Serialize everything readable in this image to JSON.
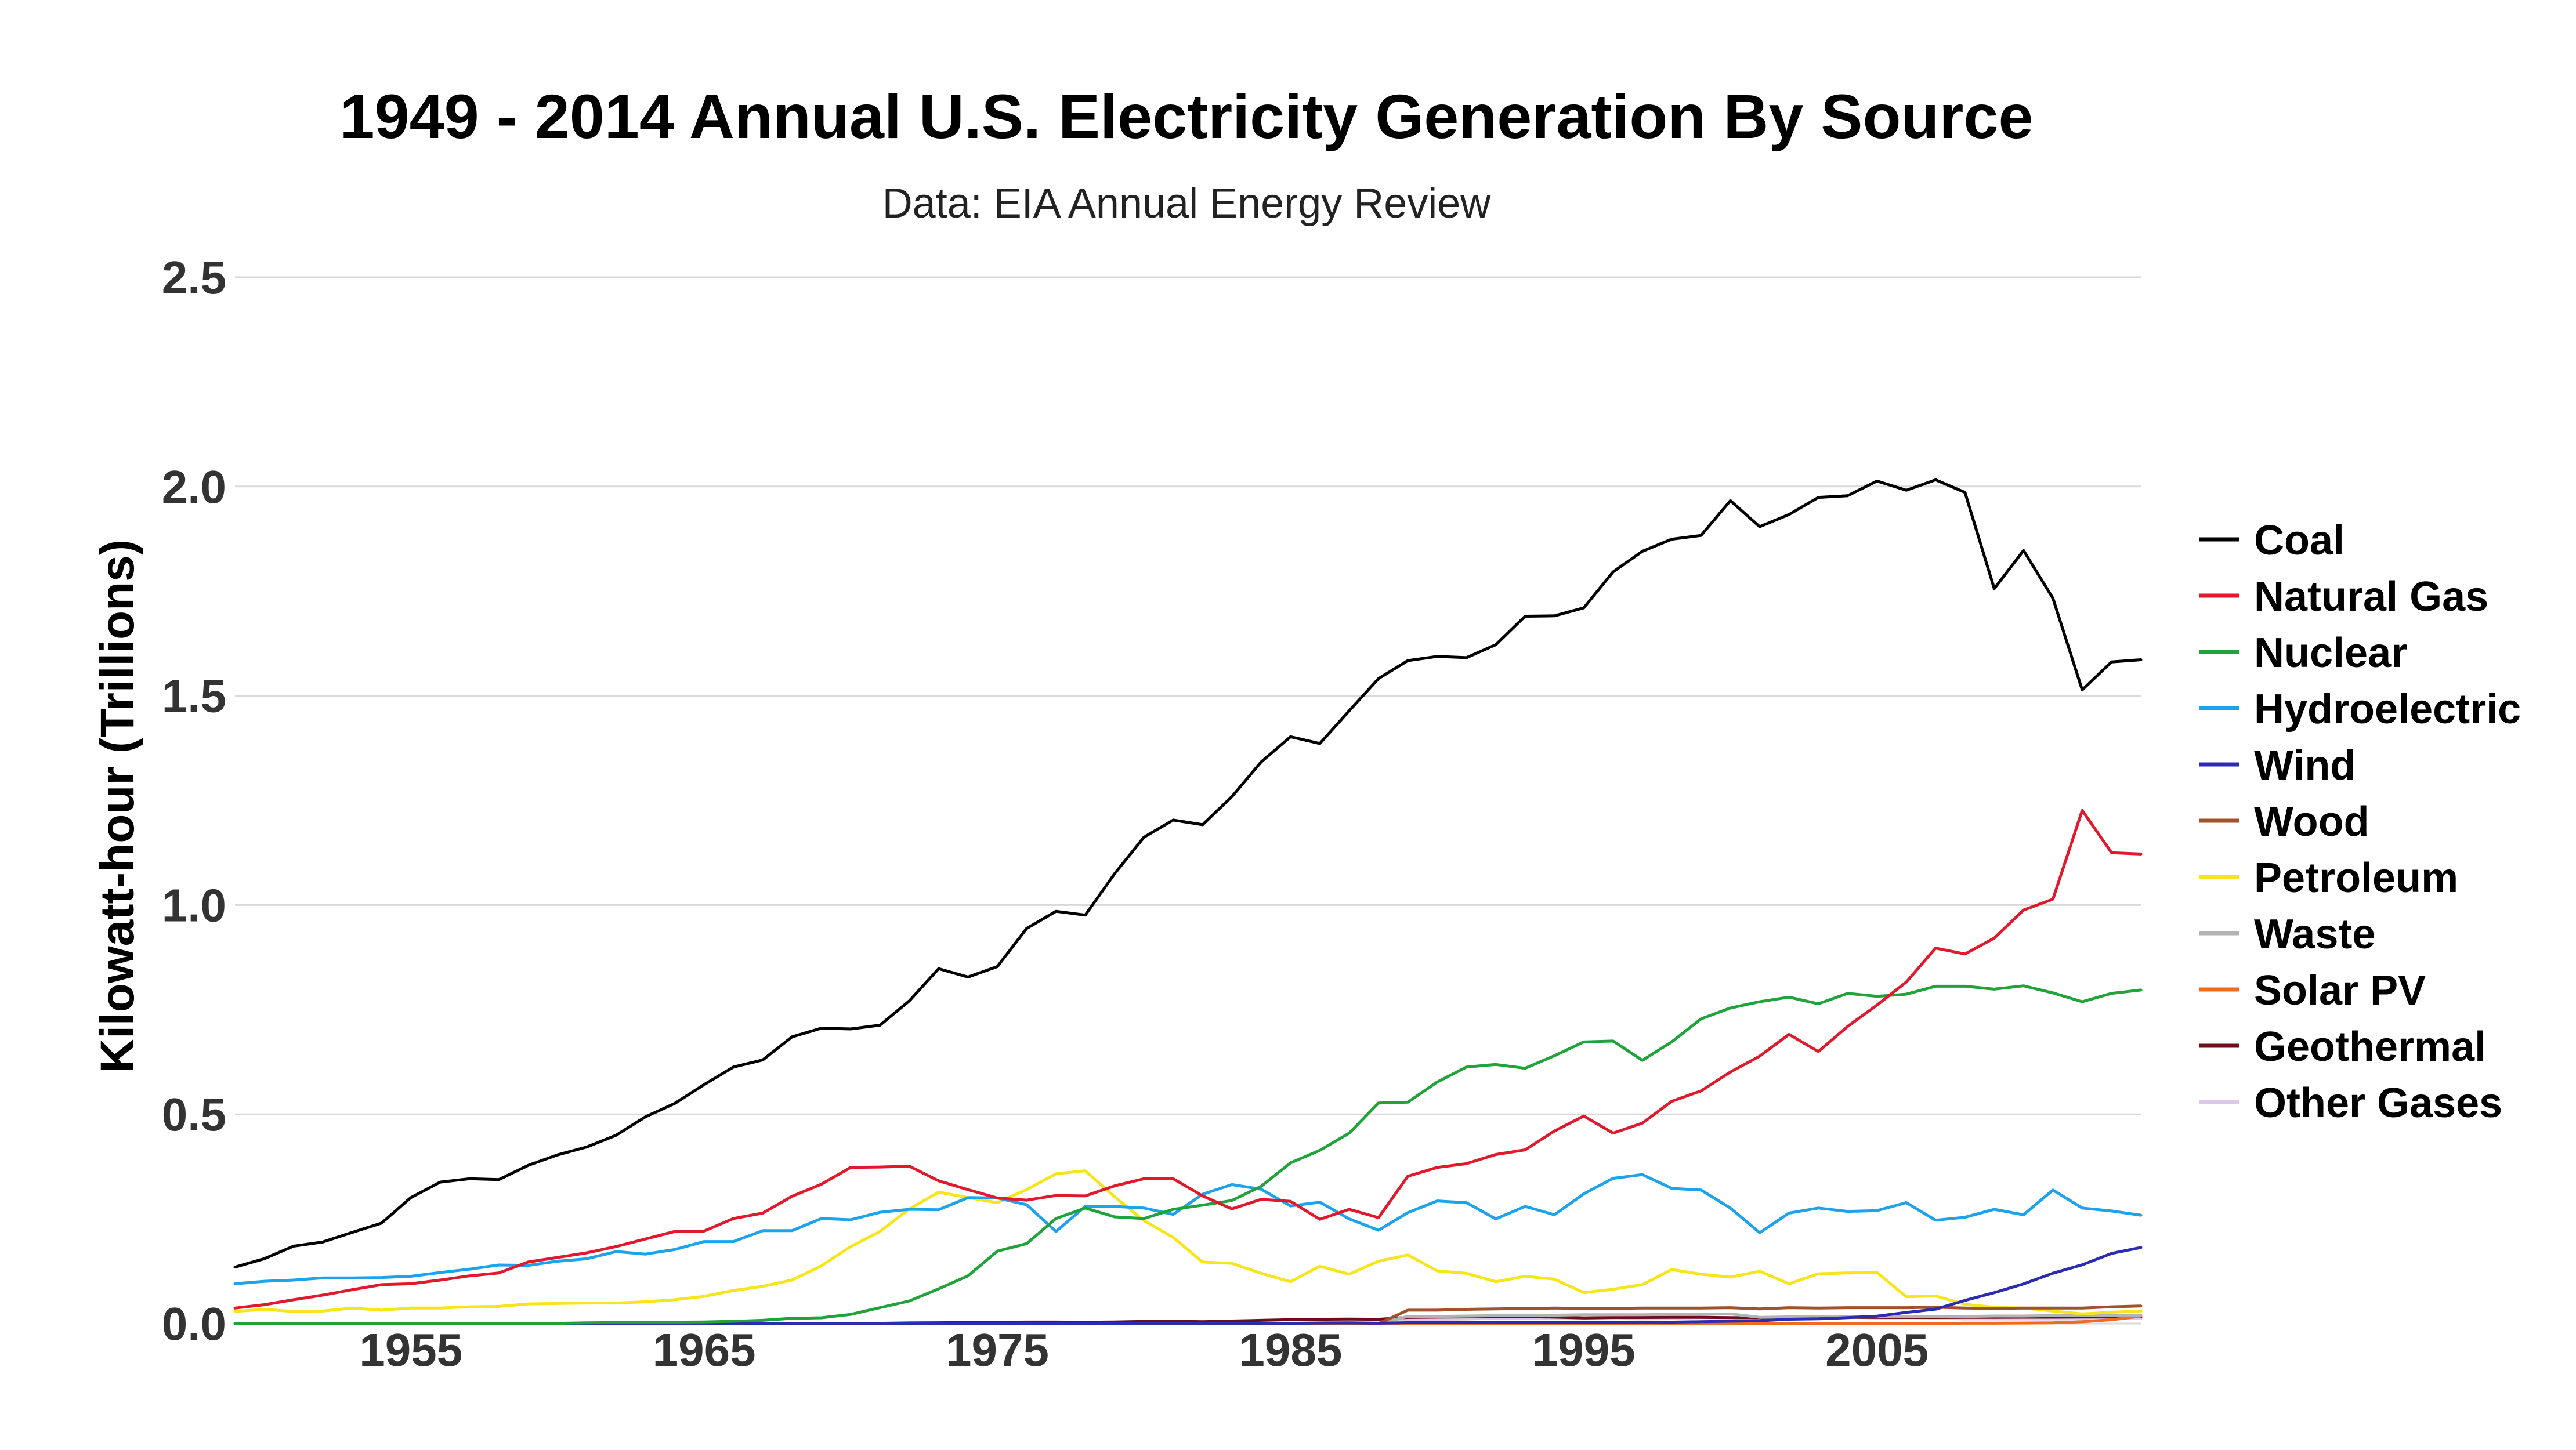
{
  "chart_data": {
    "type": "line",
    "title": "1949 - 2014 Annual U.S. Electricity Generation By Source",
    "subtitle": "Data: EIA Annual Energy Review",
    "xlabel": "",
    "ylabel": "Kilowatt-hour (Trillions)",
    "xlim": [
      1949,
      2014
    ],
    "ylim": [
      0,
      2.5
    ],
    "x_ticks": [
      1955,
      1965,
      1975,
      1985,
      1995,
      2005
    ],
    "y_ticks": [
      "0.0",
      "0.5",
      "1.0",
      "1.5",
      "2.0",
      "2.5"
    ],
    "grid": "horizontal",
    "legend_position": "right",
    "x": [
      1949,
      1950,
      1951,
      1952,
      1953,
      1954,
      1955,
      1956,
      1957,
      1958,
      1959,
      1960,
      1961,
      1962,
      1963,
      1964,
      1965,
      1966,
      1967,
      1968,
      1969,
      1970,
      1971,
      1972,
      1973,
      1974,
      1975,
      1976,
      1977,
      1978,
      1979,
      1980,
      1981,
      1982,
      1983,
      1984,
      1985,
      1986,
      1987,
      1988,
      1989,
      1990,
      1991,
      1992,
      1993,
      1994,
      1995,
      1996,
      1997,
      1998,
      1999,
      2000,
      2001,
      2002,
      2003,
      2004,
      2005,
      2006,
      2007,
      2008,
      2009,
      2010,
      2011,
      2012,
      2013,
      2014
    ],
    "series": [
      {
        "name": "Coal",
        "color": "#000000",
        "values": [
          0.135,
          0.155,
          0.185,
          0.195,
          0.218,
          0.24,
          0.301,
          0.338,
          0.346,
          0.344,
          0.378,
          0.403,
          0.422,
          0.45,
          0.494,
          0.526,
          0.571,
          0.613,
          0.63,
          0.685,
          0.706,
          0.704,
          0.713,
          0.771,
          0.848,
          0.828,
          0.853,
          0.944,
          0.985,
          0.976,
          1.075,
          1.162,
          1.203,
          1.192,
          1.259,
          1.342,
          1.402,
          1.386,
          1.464,
          1.541,
          1.584,
          1.594,
          1.591,
          1.622,
          1.69,
          1.691,
          1.71,
          1.796,
          1.845,
          1.874,
          1.883,
          1.966,
          1.904,
          1.933,
          1.974,
          1.978,
          2.013,
          1.991,
          2.016,
          1.986,
          1.756,
          1.847,
          1.733,
          1.514,
          1.581,
          1.586
        ]
      },
      {
        "name": "Natural Gas",
        "color": "#e0192d",
        "values": [
          0.037,
          0.045,
          0.057,
          0.068,
          0.081,
          0.093,
          0.095,
          0.104,
          0.114,
          0.121,
          0.147,
          0.158,
          0.169,
          0.184,
          0.202,
          0.22,
          0.221,
          0.251,
          0.264,
          0.304,
          0.333,
          0.373,
          0.374,
          0.376,
          0.341,
          0.32,
          0.3,
          0.295,
          0.306,
          0.305,
          0.329,
          0.346,
          0.346,
          0.305,
          0.274,
          0.297,
          0.292,
          0.249,
          0.273,
          0.253,
          0.352,
          0.373,
          0.382,
          0.404,
          0.415,
          0.46,
          0.496,
          0.455,
          0.479,
          0.531,
          0.556,
          0.601,
          0.639,
          0.691,
          0.65,
          0.71,
          0.761,
          0.816,
          0.897,
          0.883,
          0.921,
          0.988,
          1.014,
          1.226,
          1.125,
          1.122
        ]
      },
      {
        "name": "Nuclear",
        "color": "#1fa33a",
        "values": [
          0,
          0,
          0,
          0,
          0,
          0,
          0,
          0,
          0.0001,
          0.0002,
          0.0002,
          0.0005,
          0.0017,
          0.0023,
          0.0032,
          0.0033,
          0.0037,
          0.0055,
          0.0077,
          0.0126,
          0.0139,
          0.0219,
          0.038,
          0.054,
          0.083,
          0.114,
          0.173,
          0.191,
          0.251,
          0.276,
          0.255,
          0.251,
          0.273,
          0.283,
          0.294,
          0.328,
          0.384,
          0.414,
          0.455,
          0.527,
          0.529,
          0.577,
          0.613,
          0.619,
          0.61,
          0.64,
          0.673,
          0.675,
          0.629,
          0.673,
          0.728,
          0.754,
          0.769,
          0.78,
          0.764,
          0.789,
          0.782,
          0.787,
          0.806,
          0.806,
          0.799,
          0.807,
          0.79,
          0.769,
          0.789,
          0.797
        ]
      },
      {
        "name": "Hydroelectric",
        "color": "#1ca3ec",
        "values": [
          0.095,
          0.101,
          0.104,
          0.109,
          0.109,
          0.11,
          0.113,
          0.122,
          0.13,
          0.14,
          0.139,
          0.149,
          0.155,
          0.172,
          0.166,
          0.177,
          0.196,
          0.196,
          0.222,
          0.222,
          0.251,
          0.248,
          0.266,
          0.273,
          0.272,
          0.301,
          0.3,
          0.284,
          0.22,
          0.28,
          0.28,
          0.276,
          0.261,
          0.309,
          0.332,
          0.321,
          0.281,
          0.29,
          0.25,
          0.223,
          0.265,
          0.293,
          0.289,
          0.25,
          0.28,
          0.26,
          0.31,
          0.347,
          0.356,
          0.323,
          0.319,
          0.276,
          0.217,
          0.264,
          0.276,
          0.268,
          0.27,
          0.289,
          0.247,
          0.254,
          0.273,
          0.26,
          0.319,
          0.276,
          0.269,
          0.259
        ]
      },
      {
        "name": "Wind",
        "color": "#2b2bb3",
        "values": [
          0,
          0,
          0,
          0,
          0,
          0,
          0,
          0,
          0,
          0,
          0,
          0,
          0,
          0,
          0,
          0,
          0,
          0,
          0,
          0,
          0,
          0,
          0,
          0,
          0,
          0,
          0,
          0,
          0,
          0,
          0,
          0,
          0,
          0,
          0,
          0.0001,
          0.0006,
          0.0014,
          0.0018,
          0.0009,
          0.0021,
          0.0028,
          0.0029,
          0.0029,
          0.003,
          0.0035,
          0.0032,
          0.0034,
          0.0036,
          0.0035,
          0.0045,
          0.0056,
          0.0067,
          0.0104,
          0.0113,
          0.0142,
          0.0178,
          0.0266,
          0.0344,
          0.0553,
          0.0739,
          0.0948,
          0.1203,
          0.1404,
          0.1676,
          0.1817
        ]
      },
      {
        "name": "Wood",
        "color": "#a0522d",
        "values": [
          0,
          0,
          0,
          0,
          0,
          0,
          0,
          0,
          0,
          0,
          0,
          0,
          0,
          0,
          0,
          0,
          0,
          0,
          0,
          0,
          0,
          0,
          0,
          0,
          0,
          0,
          0,
          0,
          0,
          0,
          0,
          0,
          0,
          0,
          0,
          0,
          0,
          0,
          0,
          0,
          0.032,
          0.032,
          0.034,
          0.035,
          0.036,
          0.037,
          0.036,
          0.036,
          0.037,
          0.037,
          0.037,
          0.038,
          0.035,
          0.038,
          0.037,
          0.038,
          0.038,
          0.038,
          0.039,
          0.037,
          0.036,
          0.037,
          0.037,
          0.037,
          0.04,
          0.042
        ]
      },
      {
        "name": "Petroleum",
        "color": "#f7e51c",
        "values": [
          0.029,
          0.034,
          0.029,
          0.03,
          0.037,
          0.032,
          0.037,
          0.037,
          0.04,
          0.041,
          0.047,
          0.048,
          0.049,
          0.049,
          0.052,
          0.057,
          0.065,
          0.079,
          0.089,
          0.104,
          0.138,
          0.184,
          0.22,
          0.274,
          0.314,
          0.301,
          0.289,
          0.32,
          0.358,
          0.365,
          0.303,
          0.246,
          0.206,
          0.147,
          0.144,
          0.12,
          0.1,
          0.137,
          0.118,
          0.149,
          0.164,
          0.126,
          0.12,
          0.1,
          0.113,
          0.106,
          0.074,
          0.082,
          0.093,
          0.129,
          0.118,
          0.111,
          0.125,
          0.095,
          0.119,
          0.121,
          0.122,
          0.064,
          0.066,
          0.046,
          0.039,
          0.037,
          0.03,
          0.023,
          0.027,
          0.03
        ]
      },
      {
        "name": "Waste",
        "color": "#b3b3b3",
        "values": [
          0,
          0,
          0,
          0,
          0,
          0,
          0,
          0,
          0,
          0,
          0,
          0,
          0,
          0,
          0,
          0,
          0,
          0,
          0,
          0,
          0,
          0,
          0,
          0,
          0,
          0,
          0,
          0,
          0,
          0,
          0,
          0,
          0,
          0,
          0,
          0,
          0,
          0,
          0,
          0,
          0.017,
          0.017,
          0.018,
          0.019,
          0.02,
          0.02,
          0.021,
          0.021,
          0.021,
          0.022,
          0.022,
          0.023,
          0.015,
          0.016,
          0.016,
          0.016,
          0.016,
          0.016,
          0.017,
          0.017,
          0.018,
          0.018,
          0.019,
          0.02,
          0.02,
          0.02
        ]
      },
      {
        "name": "Solar PV",
        "color": "#f26b1d",
        "values": [
          0,
          0,
          0,
          0,
          0,
          0,
          0,
          0,
          0,
          0,
          0,
          0,
          0,
          0,
          0,
          0,
          0,
          0,
          0,
          0,
          0,
          0,
          0,
          0,
          0,
          0,
          0,
          0,
          0,
          0,
          0,
          0,
          0,
          0,
          0,
          0,
          0,
          0,
          0,
          0,
          0,
          0,
          0,
          0,
          0,
          0,
          0,
          0,
          0,
          0,
          0,
          0,
          0,
          0,
          0,
          0,
          0,
          0,
          0.0001,
          0.0008,
          0.0009,
          0.0012,
          0.0018,
          0.0043,
          0.0092,
          0.0177
        ]
      },
      {
        "name": "Geothermal",
        "color": "#6b0f1a",
        "values": [
          0,
          0,
          0,
          0,
          0,
          0,
          0,
          0,
          0,
          0,
          0,
          0.0002,
          0.0001,
          0.0001,
          0.0002,
          0.0003,
          0.0002,
          0.0002,
          0.0002,
          0.0004,
          0.0006,
          0.0005,
          0.0005,
          0.0015,
          0.0019,
          0.0025,
          0.0031,
          0.0036,
          0.0036,
          0.003,
          0.0039,
          0.0051,
          0.0057,
          0.0046,
          0.0063,
          0.0077,
          0.0094,
          0.0103,
          0.0108,
          0.0103,
          0.0147,
          0.0154,
          0.0159,
          0.0161,
          0.0166,
          0.0154,
          0.0134,
          0.0144,
          0.0145,
          0.0148,
          0.0148,
          0.0141,
          0.0138,
          0.0144,
          0.0145,
          0.0148,
          0.0147,
          0.0146,
          0.0146,
          0.0148,
          0.015,
          0.0152,
          0.0153,
          0.0156,
          0.0158,
          0.0159
        ]
      },
      {
        "name": "Other Gases",
        "color": "#dcc8e8",
        "values": [
          0,
          0,
          0,
          0,
          0,
          0,
          0,
          0,
          0,
          0,
          0,
          0,
          0,
          0,
          0,
          0,
          0,
          0,
          0,
          0,
          0,
          0,
          0,
          0,
          0,
          0,
          0,
          0,
          0,
          0,
          0,
          0,
          0,
          0,
          0,
          0,
          0,
          0,
          0,
          0,
          0.008,
          0.01,
          0.011,
          0.013,
          0.013,
          0.013,
          0.013,
          0.014,
          0.013,
          0.013,
          0.014,
          0.014,
          0.009,
          0.011,
          0.015,
          0.016,
          0.013,
          0.014,
          0.013,
          0.011,
          0.011,
          0.011,
          0.011,
          0.011,
          0.012,
          0.012
        ]
      }
    ]
  }
}
